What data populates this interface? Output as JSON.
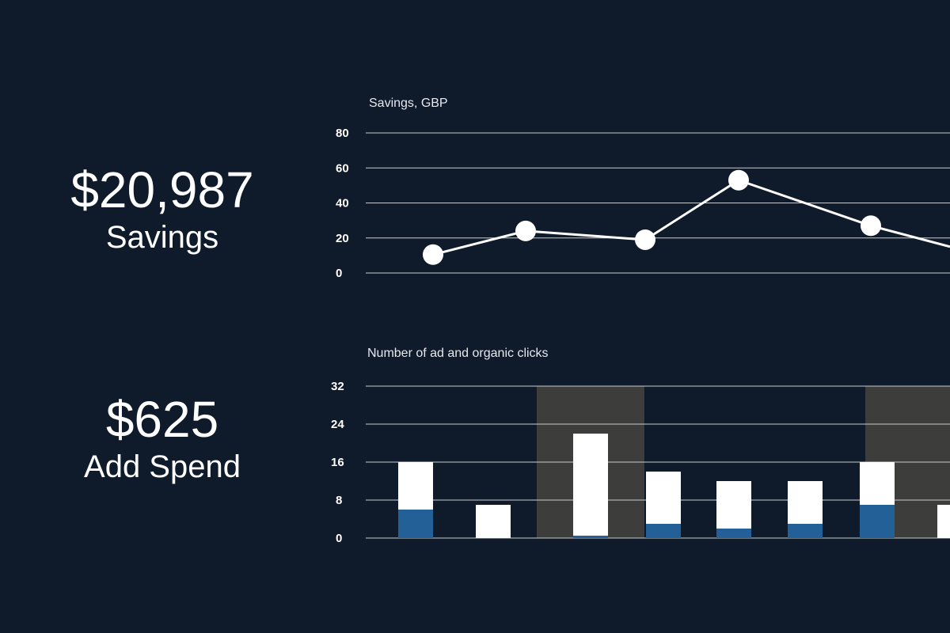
{
  "kpis": [
    {
      "value": "$20,987",
      "label": "Savings"
    },
    {
      "value": "$625",
      "label": "Add Spend"
    }
  ],
  "colors": {
    "background": "#0f1b2b",
    "line": "#ffffff",
    "organic": "#ffffff",
    "ad": "#236098",
    "shade": "#3d3d3b",
    "grid": "#c8ccd2"
  },
  "chart_data": [
    {
      "type": "line",
      "title": "Savings, GBP",
      "ylim": [
        0,
        80
      ],
      "yticks": [
        "0",
        "20",
        "40",
        "60",
        "80"
      ],
      "grid": true,
      "values": [
        10.5,
        24,
        19,
        53,
        27,
        15
      ]
    },
    {
      "type": "bar",
      "stacked": true,
      "title": "Number of ad and organic clicks",
      "ylim": [
        0,
        32
      ],
      "yticks": [
        "0",
        "8",
        "16",
        "24",
        "32"
      ],
      "grid": true,
      "shaded_bands": [
        [
          2.5,
          3.5
        ],
        [
          7,
          8
        ]
      ],
      "series": [
        {
          "values": [
            6,
            0,
            0.5,
            3,
            2,
            3,
            7,
            0
          ],
          "color": "#236098"
        },
        {
          "values": [
            10,
            7,
            21.5,
            11,
            10,
            9,
            9,
            7
          ],
          "color": "#ffffff"
        }
      ]
    }
  ]
}
